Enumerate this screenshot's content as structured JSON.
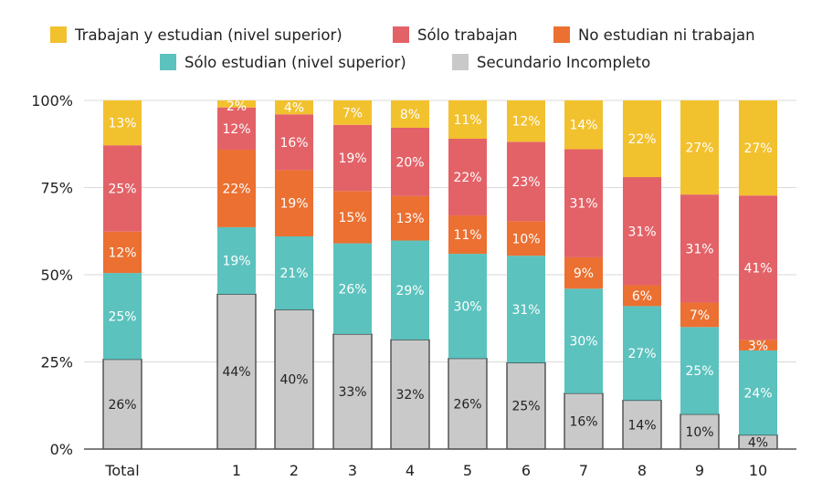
{
  "chart_data": {
    "type": "bar",
    "stacked": true,
    "categories": [
      "Total",
      "",
      "1",
      "2",
      "3",
      "4",
      "5",
      "6",
      "7",
      "8",
      "9",
      "10"
    ],
    "series": [
      {
        "name": "Secundario Incompleto",
        "color": "#C9C9C9",
        "label_color": "#222222",
        "values": [
          26,
          null,
          44,
          40,
          33,
          32,
          26,
          25,
          16,
          14,
          10,
          4
        ]
      },
      {
        "name": "Sólo estudian (nivel superior)",
        "color": "#5BC2BE",
        "label_color": "#ffffff",
        "values": [
          25,
          null,
          19,
          21,
          26,
          29,
          30,
          31,
          30,
          27,
          25,
          24
        ]
      },
      {
        "name": "No estudian ni trabajan",
        "color": "#EB7031",
        "label_color": "#ffffff",
        "values": [
          12,
          null,
          22,
          19,
          15,
          13,
          11,
          10,
          9,
          6,
          7,
          3
        ]
      },
      {
        "name": "Sólo trabajan",
        "color": "#E36268",
        "label_color": "#ffffff",
        "values": [
          25,
          null,
          12,
          16,
          19,
          20,
          22,
          23,
          31,
          31,
          31,
          41
        ]
      },
      {
        "name": "Trabajan y estudian (nivel superior)",
        "color": "#F2C12E",
        "label_color": "#ffffff",
        "values": [
          13,
          null,
          2,
          4,
          7,
          8,
          11,
          12,
          14,
          22,
          27,
          27
        ]
      }
    ],
    "legend_order": [
      4,
      3,
      2,
      1,
      0
    ],
    "legend_placement": "top",
    "yticks": [
      "0%",
      "25%",
      "50%",
      "75%",
      "100%"
    ],
    "ylim": [
      0,
      100
    ],
    "grid": true,
    "value_suffix": "%"
  }
}
